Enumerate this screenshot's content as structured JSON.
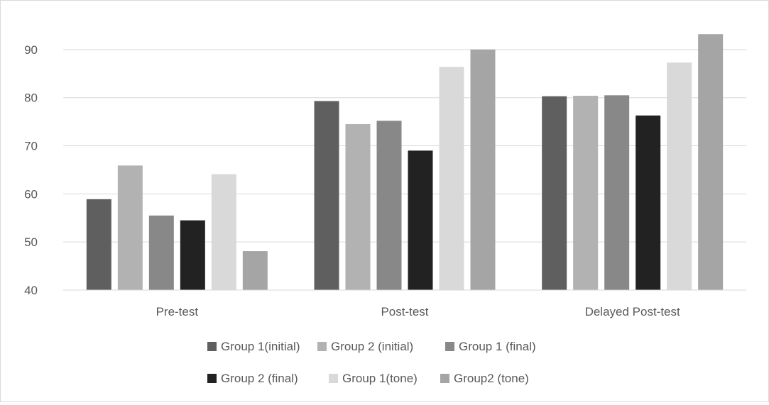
{
  "chart_data": {
    "type": "bar",
    "title": "",
    "xlabel": "",
    "ylabel": "",
    "categories": [
      "Pre-test",
      "Post-test",
      "Delayed Post-test"
    ],
    "ylim": [
      40,
      95
    ],
    "yticks": [
      40,
      50,
      60,
      70,
      80,
      90
    ],
    "grid": true,
    "legend_position": "bottom",
    "series": [
      {
        "name": "Group 1(initial)",
        "color": "#5f5f5f",
        "values": [
          58.9,
          79.3,
          80.3
        ]
      },
      {
        "name": "Group 2 (initial)",
        "color": "#b2b2b2",
        "values": [
          65.9,
          74.5,
          80.4
        ]
      },
      {
        "name": "Group 1 (final)",
        "color": "#888888",
        "values": [
          55.5,
          75.2,
          80.5
        ]
      },
      {
        "name": "Group 2 (final)",
        "color": "#222222",
        "values": [
          54.5,
          69.0,
          76.3
        ]
      },
      {
        "name": "Group 1(tone)",
        "color": "#d9d9d9",
        "values": [
          64.1,
          86.4,
          87.3
        ]
      },
      {
        "name": "Group2 (tone)",
        "color": "#a5a5a5",
        "values": [
          48.1,
          90.0,
          93.2
        ]
      }
    ]
  }
}
